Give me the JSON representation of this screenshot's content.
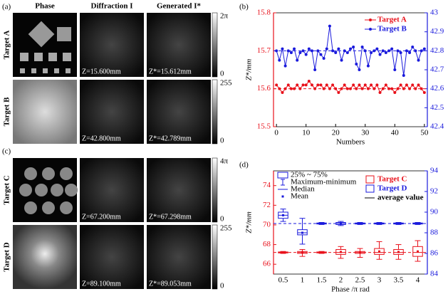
{
  "figure": {
    "panel_a": "(a)",
    "panel_c": "(c)",
    "columns": [
      "Phase",
      "Diffraction I",
      "Generated I*"
    ],
    "rows": [
      {
        "label": "Target A",
        "z": "Z=15.600mm",
        "zstar": "Z*=15.612mm",
        "cbar_phase": [
          "2π",
          "0"
        ]
      },
      {
        "label": "Target B",
        "z": "Z=42.800mm",
        "zstar": "Z*=42.789mm",
        "cbar_int": [
          "255",
          "0"
        ]
      },
      {
        "label": "Target C",
        "z": "Z=67.200mm",
        "zstar": "Z*=67.298mm",
        "cbar_phase": [
          "4π",
          "0"
        ]
      },
      {
        "label": "Target D",
        "z": "Z=89.100mm",
        "zstar": "Z*=89.053mm",
        "cbar_int": [
          "255",
          "0"
        ]
      }
    ]
  },
  "chart_data": [
    {
      "type": "line",
      "panel_label": "(b)",
      "xlabel": "Numbers",
      "ylabel": "Z*/mm",
      "xlim": [
        -1,
        51
      ],
      "xticks": [
        0,
        10,
        20,
        30,
        40,
        50
      ],
      "ylim": [
        15.5,
        15.8
      ],
      "yticks": [
        15.5,
        15.6,
        15.7,
        15.8
      ],
      "ycolor": "#e8101a",
      "y2lim": [
        42.4,
        43.0
      ],
      "y2ticks": [
        42.4,
        42.5,
        42.6,
        42.7,
        42.8,
        42.9,
        43.0
      ],
      "y2color": "#1a1adc",
      "legend": "upper right",
      "x": [
        0,
        1,
        2,
        3,
        4,
        5,
        6,
        7,
        8,
        9,
        10,
        11,
        12,
        13,
        14,
        15,
        16,
        17,
        18,
        19,
        20,
        21,
        22,
        23,
        24,
        25,
        26,
        27,
        28,
        29,
        30,
        31,
        32,
        33,
        34,
        35,
        36,
        37,
        38,
        39,
        40,
        41,
        42,
        43,
        44,
        45,
        46,
        47,
        48,
        49,
        50
      ],
      "series": [
        {
          "name": "Target A",
          "color": "#e8101a",
          "mean_line": 15.6,
          "values": [
            15.61,
            15.6,
            15.59,
            15.6,
            15.61,
            15.6,
            15.6,
            15.61,
            15.6,
            15.61,
            15.61,
            15.62,
            15.61,
            15.6,
            15.61,
            15.61,
            15.6,
            15.61,
            15.6,
            15.61,
            15.6,
            15.59,
            15.6,
            15.61,
            15.6,
            15.6,
            15.61,
            15.6,
            15.61,
            15.6,
            15.61,
            15.6,
            15.61,
            15.6,
            15.61,
            15.59,
            15.6,
            15.61,
            15.6,
            15.6,
            15.59,
            15.6,
            15.61,
            15.6,
            15.61,
            15.6,
            15.61,
            15.6,
            15.61,
            15.6,
            15.59
          ]
        },
        {
          "name": "Target B",
          "color": "#1a1adc",
          "axis": "y2",
          "mean_line": 42.8,
          "values": [
            42.8,
            42.75,
            42.81,
            42.72,
            42.8,
            42.79,
            42.81,
            42.75,
            42.79,
            42.8,
            42.78,
            42.81,
            42.8,
            42.7,
            42.8,
            42.78,
            42.76,
            42.81,
            42.93,
            42.8,
            42.79,
            42.81,
            42.75,
            42.8,
            42.79,
            42.81,
            42.82,
            42.73,
            42.7,
            42.82,
            42.8,
            42.72,
            42.79,
            42.8,
            42.81,
            42.78,
            42.8,
            42.79,
            42.8,
            42.81,
            42.7,
            42.8,
            42.79,
            42.67,
            42.8,
            42.79,
            42.82,
            42.8,
            42.75,
            42.8,
            42.81
          ]
        }
      ]
    },
    {
      "type": "box",
      "panel_label": "(d)",
      "xlabel": "Phase /π rad",
      "ylabel": "Z*/mm",
      "categories": [
        "0.5",
        "1",
        "1.5",
        "2",
        "2.5",
        "3",
        "3.5",
        "4"
      ],
      "ylim": [
        65,
        75.5
      ],
      "yticks": [
        66,
        68,
        70,
        72,
        74
      ],
      "ycolor": "#e8101a",
      "y2lim": [
        84,
        94
      ],
      "y2ticks": [
        84,
        86,
        88,
        90,
        92,
        94
      ],
      "y2color": "#1a1adc",
      "legend": "upper right",
      "average_label": "average value",
      "box_legend": [
        "25% ~ 75%",
        "Maximum-minimum",
        "Median",
        "Mean"
      ],
      "series": [
        {
          "name": "Target C",
          "color": "#e8101a",
          "mean_line": 67.2,
          "min": [
            67.1,
            66.8,
            67.1,
            66.6,
            66.7,
            66.5,
            66.5,
            66.3
          ],
          "q1": [
            67.15,
            67.1,
            67.15,
            67.0,
            67.1,
            67.0,
            67.0,
            66.8
          ],
          "median": [
            67.2,
            67.2,
            67.2,
            67.2,
            67.2,
            67.2,
            67.2,
            67.2
          ],
          "q3": [
            67.25,
            67.3,
            67.25,
            67.5,
            67.3,
            67.6,
            67.5,
            67.8
          ],
          "max": [
            67.3,
            67.5,
            67.3,
            67.8,
            67.6,
            68.3,
            68.0,
            68.4
          ],
          "mean": [
            67.2,
            67.2,
            67.2,
            67.25,
            67.2,
            67.3,
            67.25,
            67.3
          ]
        },
        {
          "name": "Target D",
          "color": "#1a1adc",
          "axis": "y2",
          "mean_line": 88.9,
          "min": [
            89.1,
            86.9,
            88.8,
            88.7,
            88.8,
            88.8,
            88.8,
            88.8
          ],
          "q1": [
            89.4,
            87.8,
            88.85,
            88.8,
            88.85,
            88.85,
            88.85,
            88.85
          ],
          "median": [
            89.7,
            88.0,
            88.9,
            88.9,
            88.9,
            88.9,
            88.9,
            88.9
          ],
          "q3": [
            90.0,
            88.3,
            88.95,
            89.0,
            88.95,
            88.95,
            88.95,
            88.95
          ],
          "max": [
            90.3,
            89.4,
            89.0,
            89.1,
            89.0,
            89.0,
            89.0,
            89.0
          ],
          "mean": [
            89.7,
            88.0,
            88.9,
            88.9,
            88.9,
            88.9,
            88.9,
            88.9
          ]
        }
      ]
    }
  ]
}
